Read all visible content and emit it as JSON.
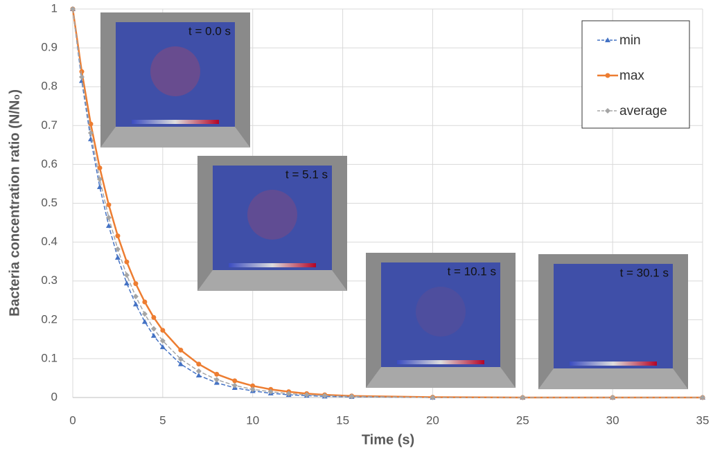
{
  "chart_data": {
    "type": "line",
    "x_label": "Time (s)",
    "y_label": "Bacteria concentration ratio (N/N₀)",
    "x": [
      0,
      0.5,
      1,
      1.5,
      2,
      2.5,
      3,
      3.5,
      4,
      4.5,
      5,
      6,
      7,
      8,
      9,
      10,
      11,
      12,
      13,
      14,
      15.5,
      20,
      25,
      30,
      35
    ],
    "series": [
      {
        "name": "min",
        "color": "#4472c4",
        "dash": true,
        "marker": "triangle",
        "values": [
          1,
          0.815,
          0.665,
          0.542,
          0.442,
          0.36,
          0.294,
          0.24,
          0.195,
          0.159,
          0.13,
          0.086,
          0.057,
          0.038,
          0.025,
          0.017,
          0.011,
          0.007,
          0.005,
          0.003,
          0.002,
          0,
          0,
          0,
          0
        ]
      },
      {
        "name": "max",
        "color": "#ed7d31",
        "dash": false,
        "marker": "circle",
        "values": [
          1,
          0.839,
          0.704,
          0.591,
          0.496,
          0.416,
          0.349,
          0.293,
          0.246,
          0.206,
          0.173,
          0.122,
          0.086,
          0.06,
          0.043,
          0.03,
          0.021,
          0.015,
          0.01,
          0.007,
          0.004,
          0.001,
          0,
          0,
          0
        ]
      },
      {
        "name": "average",
        "color": "#a5a5a5",
        "dash": true,
        "marker": "diamond",
        "values": [
          1,
          0.825,
          0.681,
          0.562,
          0.463,
          0.382,
          0.315,
          0.26,
          0.215,
          0.177,
          0.146,
          0.099,
          0.068,
          0.046,
          0.031,
          0.021,
          0.015,
          0.01,
          0.007,
          0.005,
          0.003,
          0,
          0,
          0,
          0
        ]
      }
    ],
    "xlim": [
      0,
      35
    ],
    "xticks": [
      0,
      5,
      10,
      15,
      20,
      25,
      30,
      35
    ],
    "ylim": [
      0,
      1
    ],
    "yticks": [
      0,
      0.1,
      0.2,
      0.3,
      0.4,
      0.5,
      0.6,
      0.7,
      0.8,
      0.9,
      1
    ],
    "grid": true,
    "legend": "top-right",
    "annotations": [
      "t = 0.0 s",
      "t = 5.1 s",
      "t = 10.1 s",
      "t = 30.1 s"
    ]
  }
}
